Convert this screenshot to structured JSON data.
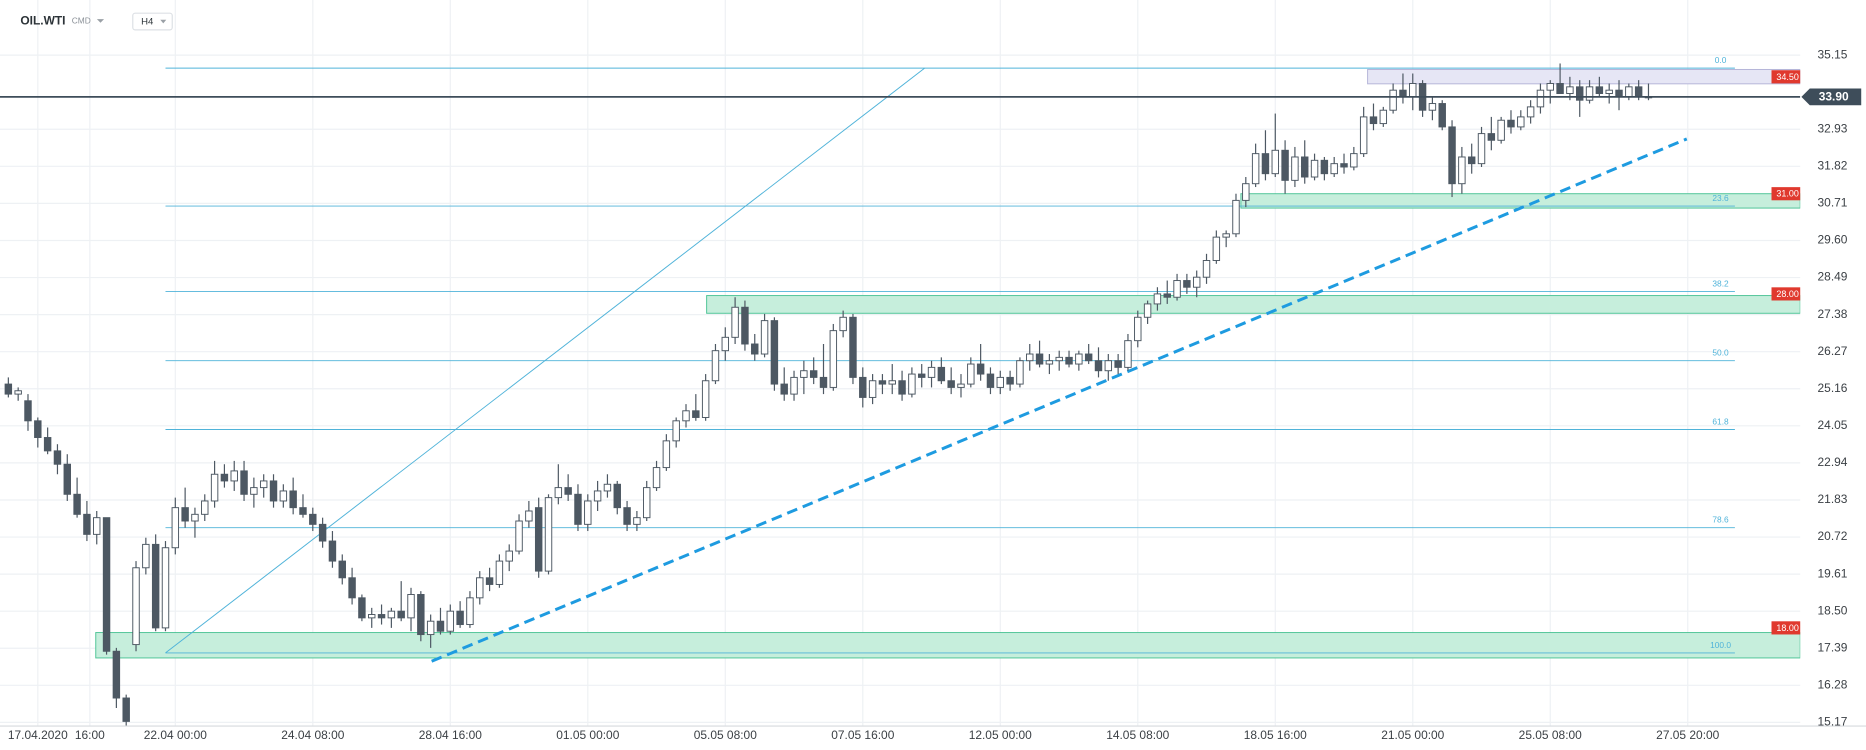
{
  "toolbar": {
    "symbol": "OIL.WTI",
    "market": "CMD",
    "interval": "H4"
  },
  "chart_data": {
    "type": "candlestick",
    "up_color": "#ffffff",
    "down_color": "#4d5863",
    "edge_color": "#4d5863",
    "grid": true,
    "xlim": [
      -0.85,
      182.45
    ],
    "xticks": [
      {
        "value": 3,
        "label": "17.04.2020"
      },
      {
        "value": 8.3,
        "label": "16:00"
      },
      {
        "value": 17,
        "label": "22.04 00:00"
      },
      {
        "value": 31,
        "label": "24.04 08:00"
      },
      {
        "value": 45,
        "label": "28.04 16:00"
      },
      {
        "value": 59,
        "label": "01.05 00:00"
      },
      {
        "value": 73,
        "label": "05.05 08:00"
      },
      {
        "value": 87,
        "label": "07.05 16:00"
      },
      {
        "value": 101,
        "label": "12.05 00:00"
      },
      {
        "value": 115,
        "label": "14.05 08:00"
      },
      {
        "value": 129,
        "label": "18.05 16:00"
      },
      {
        "value": 143,
        "label": "21.05 00:00"
      },
      {
        "value": 157,
        "label": "25.05 08:00"
      },
      {
        "value": 171,
        "label": "27.05 20:00"
      }
    ],
    "ylim": [
      15.06,
      36.8
    ],
    "yticks": [
      35.15,
      32.93,
      31.82,
      30.71,
      {
        "value": 29.6,
        "label": "29.60"
      },
      28.49,
      27.38,
      26.27,
      25.16,
      24.05,
      22.94,
      21.83,
      20.72,
      19.61,
      {
        "value": 18.5,
        "label": "18.50"
      },
      17.39,
      16.28,
      15.17
    ],
    "open": [
      25.3,
      25.0,
      24.8,
      24.2,
      23.7,
      23.3,
      22.9,
      22.0,
      21.4,
      20.8,
      21.3,
      17.3,
      15.9,
      17.5,
      19.8,
      20.5,
      18.0,
      20.4,
      21.6,
      21.2,
      21.4,
      21.8,
      22.6,
      22.4,
      22.7,
      22.0,
      22.2,
      22.4,
      21.8,
      22.1,
      21.6,
      21.4,
      21.1,
      20.6,
      20.0,
      19.5,
      18.9,
      18.3,
      18.4,
      18.3,
      18.5,
      18.3,
      19.0,
      17.8,
      18.2,
      17.9,
      18.5,
      18.1,
      18.9,
      19.5,
      19.3,
      20.0,
      20.3,
      21.2,
      21.6,
      19.7,
      21.9,
      22.2,
      22.0,
      21.1,
      21.8,
      22.1,
      22.3,
      21.6,
      21.1,
      21.3,
      22.2,
      22.8,
      23.6,
      24.2,
      24.5,
      24.3,
      25.4,
      26.3,
      26.7,
      27.6,
      26.5,
      26.2,
      27.2,
      25.3,
      25.0,
      25.5,
      25.7,
      25.5,
      25.2,
      26.9,
      27.3,
      25.5,
      24.9,
      25.4,
      25.3,
      25.4,
      25.0,
      25.6,
      25.5,
      25.8,
      25.4,
      25.2,
      25.3,
      25.9,
      25.6,
      25.2,
      25.5,
      25.3,
      26.0,
      26.2,
      25.9,
      26.0,
      26.1,
      25.9,
      26.2,
      26.0,
      25.7,
      26.0,
      25.8,
      26.6,
      27.3,
      27.7,
      28.0,
      27.9,
      28.4,
      28.2,
      28.5,
      29.0,
      29.7,
      29.8,
      30.8,
      31.3,
      32.2,
      31.6,
      32.3,
      31.4,
      32.1,
      31.5,
      32.0,
      31.6,
      31.9,
      31.8,
      32.2,
      33.3,
      33.1,
      33.5,
      34.1,
      33.9,
      34.3,
      33.5,
      33.7,
      33.0,
      31.3,
      32.1,
      31.9,
      32.8,
      32.6,
      33.2,
      33.0,
      33.3,
      33.6,
      34.1,
      34.3,
      34.0,
      34.2,
      33.8,
      34.2,
      34.0,
      34.1,
      33.9,
      34.2,
      33.9
    ],
    "high": [
      25.5,
      25.2,
      25.0,
      24.3,
      24.0,
      23.5,
      23.2,
      22.5,
      21.8,
      21.5,
      21.3,
      17.4,
      16.0,
      20.0,
      20.7,
      20.8,
      20.6,
      21.9,
      22.2,
      21.6,
      22.0,
      23.0,
      22.9,
      23.0,
      23.0,
      22.5,
      22.6,
      22.6,
      22.3,
      22.5,
      22.0,
      21.6,
      21.3,
      20.9,
      20.2,
      19.8,
      19.0,
      18.6,
      18.7,
      18.6,
      19.4,
      19.2,
      19.1,
      18.4,
      18.6,
      18.7,
      18.8,
      19.1,
      19.7,
      19.8,
      20.2,
      20.5,
      21.4,
      21.8,
      21.9,
      22.0,
      22.9,
      22.6,
      22.3,
      22.0,
      22.4,
      22.6,
      22.4,
      21.8,
      21.5,
      22.4,
      23.0,
      23.8,
      24.3,
      24.7,
      25.0,
      25.6,
      26.5,
      27.0,
      27.9,
      27.8,
      26.8,
      27.4,
      27.3,
      25.8,
      25.7,
      26.0,
      26.1,
      26.5,
      27.1,
      27.5,
      27.4,
      25.8,
      25.6,
      25.6,
      25.9,
      25.7,
      25.8,
      25.9,
      26.0,
      26.1,
      25.8,
      25.6,
      26.1,
      26.5,
      25.8,
      25.7,
      25.7,
      26.1,
      26.5,
      26.6,
      26.2,
      26.3,
      26.3,
      26.3,
      26.5,
      26.4,
      26.2,
      26.2,
      26.8,
      27.5,
      27.8,
      28.2,
      28.4,
      28.6,
      28.6,
      28.7,
      29.2,
      29.9,
      29.9,
      31.0,
      31.5,
      32.5,
      32.9,
      33.4,
      32.6,
      32.4,
      32.6,
      32.2,
      32.1,
      32.1,
      32.2,
      32.4,
      33.6,
      33.7,
      33.6,
      34.3,
      34.6,
      34.6,
      34.4,
      33.9,
      33.8,
      33.2,
      32.4,
      32.5,
      33.0,
      33.3,
      33.3,
      33.5,
      33.5,
      33.8,
      34.3,
      34.4,
      34.9,
      34.5,
      34.4,
      34.4,
      34.5,
      34.3,
      34.4,
      34.3,
      34.4,
      34.3
    ],
    "low": [
      24.9,
      24.8,
      23.9,
      23.4,
      23.2,
      22.6,
      21.8,
      21.3,
      20.6,
      20.5,
      17.2,
      15.6,
      15.0,
      17.3,
      19.6,
      17.9,
      17.9,
      20.2,
      21.0,
      20.7,
      21.2,
      21.6,
      22.2,
      22.1,
      21.8,
      21.6,
      21.9,
      21.6,
      21.6,
      21.4,
      21.3,
      20.9,
      20.4,
      19.8,
      19.3,
      18.7,
      18.2,
      18.0,
      18.1,
      18.0,
      18.2,
      17.9,
      17.6,
      17.4,
      17.8,
      17.8,
      18.0,
      18.0,
      18.7,
      19.1,
      19.2,
      19.7,
      20.2,
      21.0,
      19.5,
      19.6,
      21.7,
      21.8,
      20.9,
      20.9,
      21.5,
      21.9,
      21.4,
      20.9,
      20.9,
      21.2,
      22.1,
      22.7,
      23.4,
      24.0,
      24.2,
      24.2,
      25.3,
      26.0,
      26.5,
      26.3,
      26.0,
      26.1,
      25.1,
      24.8,
      24.8,
      25.0,
      25.3,
      25.0,
      25.1,
      26.7,
      25.3,
      24.6,
      24.7,
      25.0,
      25.0,
      24.8,
      24.9,
      25.2,
      25.2,
      25.3,
      25.0,
      24.9,
      25.2,
      25.4,
      25.0,
      25.0,
      25.1,
      25.2,
      25.7,
      25.8,
      25.6,
      25.7,
      25.8,
      25.7,
      25.9,
      25.5,
      25.4,
      25.6,
      25.7,
      26.4,
      27.1,
      27.5,
      27.7,
      27.8,
      28.0,
      27.9,
      28.3,
      28.9,
      29.4,
      29.7,
      30.6,
      31.2,
      31.4,
      31.5,
      31.0,
      31.2,
      31.3,
      31.4,
      31.4,
      31.5,
      31.6,
      31.7,
      32.1,
      32.9,
      33.0,
      33.4,
      33.7,
      33.5,
      33.3,
      33.2,
      32.9,
      30.9,
      31.0,
      31.6,
      31.8,
      32.3,
      32.5,
      32.8,
      32.9,
      33.1,
      33.4,
      33.7,
      34.0,
      33.8,
      33.3,
      33.7,
      33.9,
      33.7,
      33.5,
      33.8,
      33.8,
      33.8
    ],
    "close": [
      25.0,
      25.1,
      24.2,
      23.7,
      23.3,
      22.9,
      22.0,
      21.4,
      20.8,
      21.3,
      17.3,
      15.9,
      15.2,
      19.8,
      20.5,
      18.0,
      20.4,
      21.6,
      21.2,
      21.4,
      21.8,
      22.6,
      22.4,
      22.7,
      22.0,
      22.2,
      22.4,
      21.8,
      22.1,
      21.6,
      21.4,
      21.1,
      20.6,
      20.0,
      19.5,
      18.9,
      18.3,
      18.4,
      18.3,
      18.5,
      18.3,
      19.0,
      17.8,
      18.2,
      17.9,
      18.5,
      18.1,
      18.9,
      19.5,
      19.3,
      20.0,
      20.3,
      21.2,
      21.5,
      19.7,
      21.9,
      22.2,
      22.0,
      21.1,
      21.8,
      22.1,
      22.3,
      21.6,
      21.1,
      21.3,
      22.2,
      22.8,
      23.6,
      24.2,
      24.5,
      24.3,
      25.4,
      26.3,
      26.7,
      27.6,
      26.5,
      26.2,
      27.2,
      25.3,
      25.0,
      25.5,
      25.7,
      25.5,
      25.2,
      26.9,
      27.3,
      25.5,
      24.9,
      25.4,
      25.3,
      25.4,
      25.0,
      25.6,
      25.5,
      25.8,
      25.4,
      25.2,
      25.3,
      25.9,
      25.6,
      25.2,
      25.5,
      25.3,
      26.0,
      26.2,
      25.9,
      26.0,
      26.1,
      25.9,
      26.2,
      26.0,
      25.7,
      26.0,
      25.8,
      26.6,
      27.3,
      27.7,
      28.0,
      27.9,
      28.4,
      28.2,
      28.5,
      29.0,
      29.7,
      29.8,
      30.8,
      31.3,
      32.2,
      31.6,
      32.3,
      31.4,
      32.1,
      31.5,
      32.0,
      31.6,
      31.9,
      31.8,
      32.2,
      33.3,
      33.1,
      33.5,
      34.1,
      33.9,
      34.3,
      33.5,
      33.7,
      33.0,
      31.3,
      32.1,
      31.9,
      32.8,
      32.6,
      33.2,
      33.0,
      33.3,
      33.6,
      34.1,
      34.3,
      34.0,
      34.2,
      33.8,
      34.2,
      34.0,
      34.1,
      33.9,
      34.2,
      33.9,
      33.9
    ],
    "price_line": {
      "value": 33.9,
      "label": "33.90",
      "color": "#3e4d5a"
    },
    "zones": [
      {
        "level": {
          "value": 34.5,
          "label": "34.50"
        },
        "top": 34.72,
        "bottom": 34.29,
        "start": 138.4,
        "fill": "#e6e6f5",
        "stroke": "#b4b4d8"
      },
      {
        "level": {
          "value": 31,
          "label": "31.00"
        },
        "top": 31.0,
        "bottom": 30.57,
        "start": 125.5,
        "fill": "#c6eedc",
        "stroke": "#4cc395"
      },
      {
        "level": {
          "value": 28,
          "label": "28.00"
        },
        "top": 27.95,
        "bottom": 27.42,
        "start": 71.1,
        "fill": "#c6eedc",
        "stroke": "#4cc395"
      },
      {
        "level": {
          "value": 18,
          "label": "18.00"
        },
        "top": 17.86,
        "bottom": 17.1,
        "start": 8.9,
        "fill": "#c6eedc",
        "stroke": "#4cc395"
      }
    ],
    "zone_label_color": "#e0392e",
    "fibonacci": {
      "color": "#4fb3d9",
      "x": [
        16,
        175.8
      ],
      "levels": [
        {
          "ratio": "0.0",
          "price": 34.76
        },
        {
          "ratio": "23.6",
          "price": 30.63
        },
        {
          "ratio": "38.2",
          "price": 28.07
        },
        {
          "ratio": "50.0",
          "price": 26.0
        },
        {
          "ratio": "61.8",
          "price": 23.94
        },
        {
          "ratio": "78.6",
          "price": 21.0
        },
        {
          "ratio": "100.0",
          "price": 17.25
        }
      ],
      "diagonal": {
        "x": [
          16,
          93.3
        ],
        "y": [
          17.25,
          34.76
        ]
      }
    },
    "trend_line": {
      "x": [
        43.1,
        170.9
      ],
      "y": [
        17.0,
        32.64
      ],
      "color": "#1e9be0",
      "dashed": true
    }
  }
}
